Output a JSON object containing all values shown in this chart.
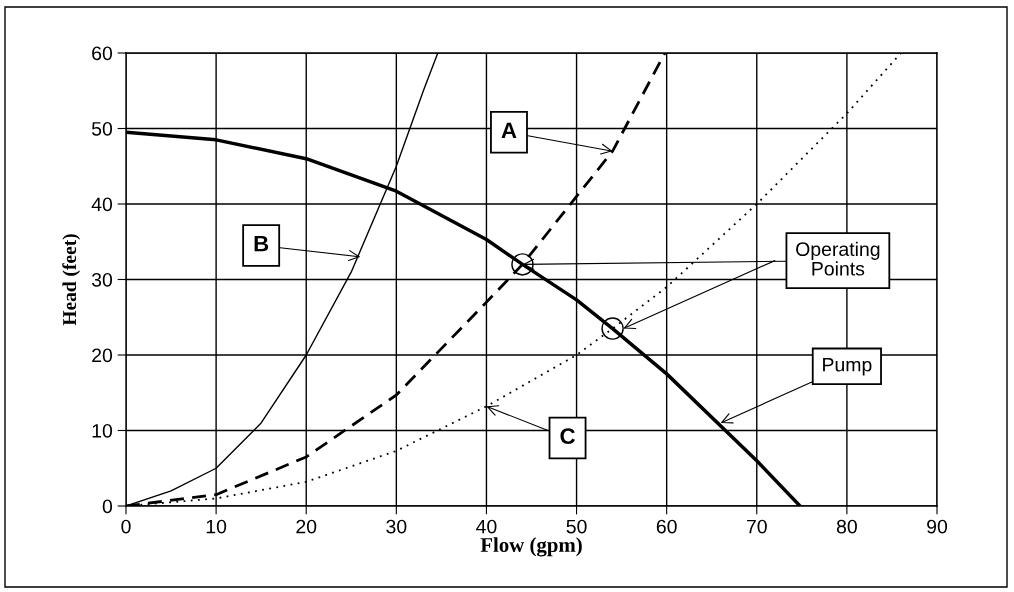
{
  "chart_data": {
    "type": "line",
    "xlabel": "Flow (gpm)",
    "ylabel": "Head (feet)",
    "xlim": [
      0,
      90
    ],
    "ylim": [
      0,
      60
    ],
    "xticks": [
      0,
      10,
      20,
      30,
      40,
      50,
      60,
      70,
      80,
      90
    ],
    "yticks": [
      0,
      10,
      20,
      30,
      40,
      50,
      60
    ],
    "grid": true,
    "legend": false,
    "series": [
      {
        "color": "#000000",
        "line_style": "solid",
        "x": [
          0,
          10,
          20,
          30,
          40,
          44,
          50,
          54,
          60,
          70,
          74.8
        ],
        "values": [
          49.5,
          48.5,
          46,
          41.7,
          35.3,
          32,
          27.3,
          23.5,
          17.5,
          6,
          0
        ]
      },
      {
        "color": "#000000",
        "line_style": "dashed",
        "x": [
          0,
          10,
          20,
          30,
          40,
          44,
          50,
          54,
          59.8
        ],
        "values": [
          0,
          1.5,
          6.5,
          14.7,
          27,
          32,
          41,
          47,
          60
        ]
      },
      {
        "color": "#000000",
        "line_style": "solid",
        "x": [
          0,
          5,
          10,
          15,
          20,
          25,
          30,
          33,
          34.6
        ],
        "values": [
          0,
          2,
          5,
          11,
          20,
          31,
          45,
          55,
          60
        ]
      },
      {
        "color": "#000000",
        "line_style": "dotted",
        "x": [
          0,
          10,
          20,
          30,
          40,
          50,
          54,
          60,
          70,
          80,
          86
        ],
        "values": [
          0,
          1,
          3.2,
          7.3,
          13.2,
          20,
          23.5,
          29,
          40,
          52,
          60
        ]
      },
      {
        "type": "scatter",
        "color": "#000000",
        "marker": "circle",
        "x": [
          44,
          54
        ],
        "values": [
          32,
          23.5
        ]
      }
    ],
    "annotations": [
      {
        "text": "A",
        "x": 54,
        "y": 47
      },
      {
        "text": "B",
        "x": 26,
        "y": 33
      },
      {
        "text": "C",
        "x": 40,
        "y": 13.2
      },
      {
        "text": "Pump",
        "x": 66,
        "y": 11
      },
      {
        "text": "Operating Points",
        "x": 44,
        "y": 32
      }
    ]
  }
}
